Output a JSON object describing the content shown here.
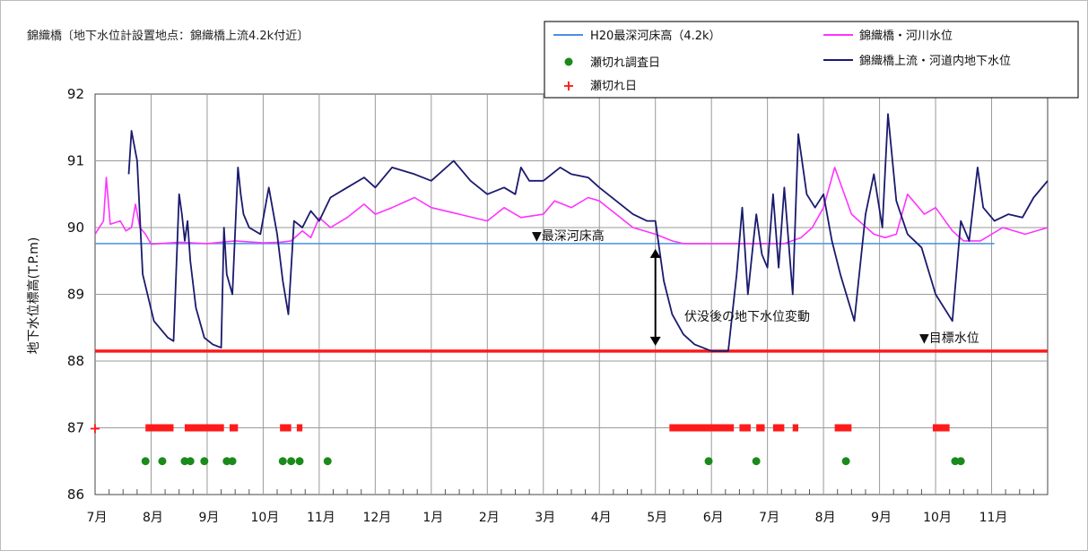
{
  "chart_data": {
    "type": "line",
    "title": "錦織橋〔地下水位計設置地点：錦織橋上流4.2k付近〕",
    "ylabel": "地下水位標高(T.P.m)",
    "xlabel": "",
    "ylim": [
      86,
      92
    ],
    "yticks": [
      "86",
      "87",
      "88",
      "89",
      "90",
      "91",
      "92"
    ],
    "xlim": [
      0,
      17
    ],
    "months": [
      "7月",
      "8月",
      "9月",
      "10月",
      "11月",
      "12月",
      "1月",
      "2月",
      "3月",
      "4月",
      "5月",
      "6月",
      "7月",
      "8月",
      "9月",
      "10月",
      "11月"
    ],
    "grid": true,
    "legend_position": "top-right",
    "colors": {
      "bed": "#4a90e2",
      "river": "#ff33ff",
      "groundwater": "#1a1a6e",
      "survey": "#1a8a1a",
      "dryup": "#ff1a1a",
      "target": "#ff1a1a"
    },
    "series": [
      {
        "name": "H20最深河床高（4.2k）",
        "kind": "hline",
        "y": 89.76,
        "x_range": [
          0,
          16.05
        ]
      },
      {
        "name": "錦織橋・河川水位",
        "kind": "line",
        "x": [
          0,
          0.15,
          0.2,
          0.27,
          0.45,
          0.55,
          0.65,
          0.72,
          0.8,
          0.9,
          1.0,
          1.5,
          2.0,
          2.5,
          3.0,
          3.3,
          3.5,
          3.7,
          3.85,
          4.0,
          4.2,
          4.5,
          4.8,
          5.0,
          5.3,
          5.7,
          6.0,
          6.5,
          7.0,
          7.3,
          7.6,
          8.0,
          8.2,
          8.5,
          8.8,
          9.0,
          9.3,
          9.6,
          10.0,
          10.3,
          10.5,
          10.7,
          11.0,
          11.5,
          12.0,
          12.3,
          12.6,
          12.8,
          13.0,
          13.2,
          13.5,
          13.7,
          13.9,
          14.1,
          14.3,
          14.5,
          14.8,
          15.0,
          15.3,
          15.5,
          15.8,
          16.2,
          16.6,
          17.0
        ],
        "y": [
          89.9,
          90.1,
          90.75,
          90.05,
          90.1,
          89.95,
          90.0,
          90.35,
          90.0,
          89.9,
          89.75,
          89.78,
          89.76,
          89.8,
          89.77,
          89.78,
          89.8,
          89.95,
          89.85,
          90.15,
          90.0,
          90.15,
          90.35,
          90.2,
          90.3,
          90.45,
          90.3,
          90.2,
          90.1,
          90.3,
          90.15,
          90.2,
          90.4,
          90.3,
          90.45,
          90.4,
          90.2,
          90.0,
          89.9,
          89.8,
          89.76,
          89.76,
          89.76,
          89.76,
          89.76,
          89.76,
          89.85,
          90.0,
          90.3,
          90.9,
          90.2,
          90.05,
          89.9,
          89.85,
          89.9,
          90.5,
          90.2,
          90.3,
          89.95,
          89.8,
          89.8,
          90.0,
          89.9,
          90.0
        ]
      },
      {
        "name": "錦織橋上流・河道内地下水位",
        "kind": "line",
        "x": [
          0.6,
          0.65,
          0.75,
          0.85,
          1.05,
          1.3,
          1.4,
          1.5,
          1.55,
          1.6,
          1.65,
          1.7,
          1.8,
          1.95,
          2.1,
          2.25,
          2.3,
          2.35,
          2.45,
          2.55,
          2.6,
          2.65,
          2.75,
          2.95,
          3.1,
          3.25,
          3.35,
          3.45,
          3.55,
          3.7,
          3.85,
          4.0,
          4.2,
          4.5,
          4.8,
          5.0,
          5.3,
          5.7,
          6.0,
          6.4,
          6.7,
          7.0,
          7.3,
          7.5,
          7.6,
          7.75,
          8.0,
          8.3,
          8.5,
          8.8,
          9.0,
          9.3,
          9.6,
          9.85,
          10.0,
          10.15,
          10.3,
          10.5,
          10.7,
          11.0,
          11.3,
          11.45,
          11.55,
          11.65,
          11.75,
          11.8,
          11.9,
          12.0,
          12.1,
          12.2,
          12.3,
          12.45,
          12.55,
          12.7,
          12.85,
          13.0,
          13.15,
          13.3,
          13.55,
          13.75,
          13.9,
          14.05,
          14.15,
          14.3,
          14.5,
          14.75,
          15.0,
          15.3,
          15.45,
          15.6,
          15.75,
          15.85,
          16.05,
          16.3,
          16.55,
          16.75,
          17.0
        ],
        "y": [
          90.8,
          91.45,
          91.0,
          89.3,
          88.6,
          88.35,
          88.3,
          90.5,
          90.2,
          89.8,
          90.1,
          89.5,
          88.8,
          88.35,
          88.25,
          88.2,
          90.0,
          89.3,
          89.0,
          90.9,
          90.5,
          90.2,
          90.0,
          89.9,
          90.6,
          89.9,
          89.2,
          88.7,
          90.1,
          90.0,
          90.25,
          90.1,
          90.45,
          90.6,
          90.75,
          90.6,
          90.9,
          90.8,
          90.7,
          91.0,
          90.7,
          90.5,
          90.6,
          90.5,
          90.9,
          90.7,
          90.7,
          90.9,
          90.8,
          90.75,
          90.6,
          90.4,
          90.2,
          90.1,
          90.1,
          89.2,
          88.7,
          88.4,
          88.25,
          88.15,
          88.15,
          89.3,
          90.3,
          89.0,
          89.8,
          90.2,
          89.6,
          89.4,
          90.5,
          89.4,
          90.6,
          89.0,
          91.4,
          90.5,
          90.3,
          90.5,
          89.8,
          89.3,
          88.6,
          90.2,
          90.8,
          90.0,
          91.7,
          90.4,
          89.9,
          89.7,
          89.0,
          88.6,
          90.1,
          89.8,
          90.9,
          90.3,
          90.1,
          90.2,
          90.15,
          90.45,
          90.7
        ]
      }
    ],
    "survey_days": {
      "name": "瀬切れ調査日",
      "y": 86.5,
      "x": [
        0.9,
        1.2,
        1.6,
        1.7,
        1.95,
        2.35,
        2.45,
        3.35,
        3.5,
        3.65,
        4.15,
        10.95,
        11.8,
        13.4,
        15.35,
        15.45
      ]
    },
    "dryup_days": {
      "name": "瀬切れ日",
      "y": 87,
      "ranges": [
        [
          0.9,
          1.4
        ],
        [
          1.6,
          2.3
        ],
        [
          2.4,
          2.55
        ],
        [
          3.3,
          3.5
        ],
        [
          3.6,
          3.7
        ],
        [
          10.25,
          11.4
        ],
        [
          11.5,
          11.7
        ],
        [
          11.8,
          11.95
        ],
        [
          12.1,
          12.3
        ],
        [
          12.45,
          12.55
        ],
        [
          13.2,
          13.5
        ],
        [
          14.95,
          15.25
        ]
      ]
    },
    "target_level": {
      "y": 88.15,
      "label": "▼目標水位"
    },
    "annotations": {
      "bed_label": "▼最深河床高",
      "change_label": "伏没後の地下水位変動"
    }
  }
}
